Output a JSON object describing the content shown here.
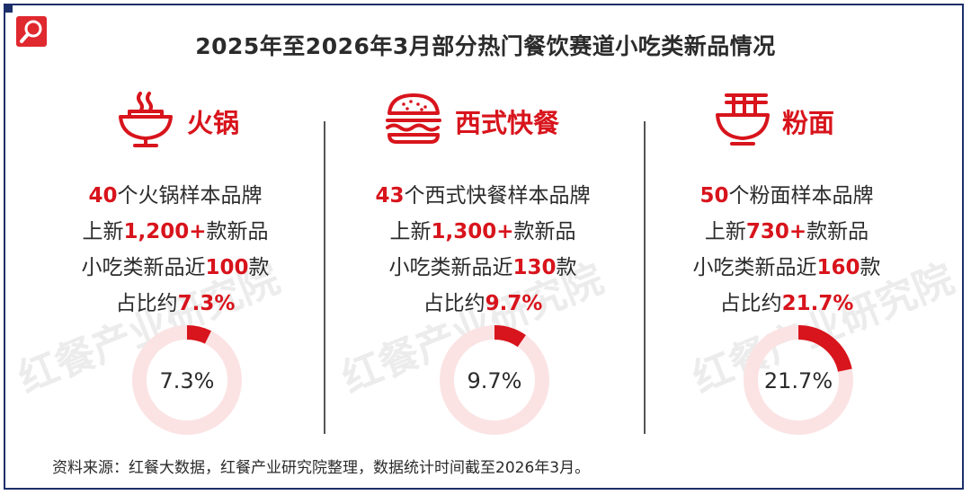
{
  "title": "2025年至2026年3月部分热门餐饮赛道小吃类新品情况",
  "watermark": "红餐产业研究院",
  "colors": {
    "accent": "#d8141c",
    "ring_track": "#fbe3e4",
    "frame": "#1c2f6b"
  },
  "source": "资料来源：红餐大数据，红餐产业研究院整理，数据统计时间截至2026年3月。",
  "columns": [
    {
      "category": "火锅",
      "icon": "hotpot-icon",
      "l1": {
        "num": "40",
        "text": "个火锅样本品牌"
      },
      "l2": {
        "pre": "上新",
        "num": "1,200+",
        "post": "款新品"
      },
      "l3": {
        "pre": "小吃类新品近",
        "num": "100",
        "post": "款"
      },
      "l4": {
        "pre": "占比约",
        "num": "7.3%"
      }
    },
    {
      "category": "西式快餐",
      "icon": "burger-icon",
      "l1": {
        "num": "43",
        "text": "个西式快餐样本品牌"
      },
      "l2": {
        "pre": "上新",
        "num": "1,300+",
        "post": "款新品"
      },
      "l3": {
        "pre": "小吃类新品近",
        "num": "130",
        "post": "款"
      },
      "l4": {
        "pre": "占比约",
        "num": "9.7%"
      }
    },
    {
      "category": "粉面",
      "icon": "noodle-bowl-icon",
      "l1": {
        "num": "50",
        "text": "个粉面样本品牌"
      },
      "l2": {
        "pre": "上新",
        "num": "730+",
        "post": "款新品"
      },
      "l3": {
        "pre": "小吃类新品近",
        "num": "160",
        "post": "款"
      },
      "l4": {
        "pre": "占比约",
        "num": "21.7%"
      }
    }
  ],
  "chart_data": [
    {
      "type": "pie",
      "style": "donut",
      "category": "火锅",
      "values": [
        7.3,
        92.7
      ],
      "unit": "%",
      "label": "7.3%"
    },
    {
      "type": "pie",
      "style": "donut",
      "category": "西式快餐",
      "values": [
        9.7,
        90.3
      ],
      "unit": "%",
      "label": "9.7%"
    },
    {
      "type": "pie",
      "style": "donut",
      "category": "粉面",
      "values": [
        21.7,
        78.3
      ],
      "unit": "%",
      "label": "21.7%"
    }
  ]
}
